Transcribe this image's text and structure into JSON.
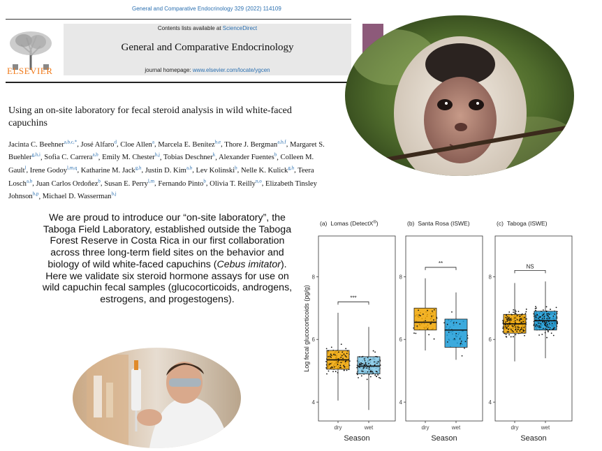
{
  "header": {
    "citation": "General and Comparative Endocrinology 329 (2022) 114109",
    "contents_prefix": "Contents lists available at ",
    "contents_link": "ScienceDirect",
    "journal_name": "General and Comparative Endocrinology",
    "homepage_prefix": "journal homepage: ",
    "homepage_url": "www.elsevier.com/locate/ygcen",
    "publisher": "ELSEVIER"
  },
  "article": {
    "title": "Using an on-site laboratory for fecal steroid analysis in wild white-faced capuchins",
    "authors": [
      {
        "name": "Jacinta C. Beehner",
        "aff": "a,b,c,*"
      },
      {
        "name": "José Alfaro",
        "aff": "d"
      },
      {
        "name": "Cloe Allen",
        "aff": "a"
      },
      {
        "name": "Marcela E. Benítez",
        "aff": "b,e"
      },
      {
        "name": "Thore J. Bergman",
        "aff": "a,b,f"
      },
      {
        "name": "Margaret S. Buehler",
        "aff": "g,h,i"
      },
      {
        "name": "Sofia C. Carrera",
        "aff": "a,b"
      },
      {
        "name": "Emily M. Chester",
        "aff": "h,j"
      },
      {
        "name": "Tobias Deschner",
        "aff": "k"
      },
      {
        "name": "Alexander Fuentes",
        "aff": "b"
      },
      {
        "name": "Colleen M. Gault",
        "aff": "l"
      },
      {
        "name": "Irene Godoy",
        "aff": "l,m,q"
      },
      {
        "name": "Katharine M. Jack",
        "aff": "g,h"
      },
      {
        "name": "Justin D. Kim",
        "aff": "a,b"
      },
      {
        "name": "Lev Kolinski",
        "aff": "b"
      },
      {
        "name": "Nelle K. Kulick",
        "aff": "g,h"
      },
      {
        "name": "Teera Losch",
        "aff": "a,b"
      },
      {
        "name": "Juan Carlos Ordoñez",
        "aff": "b"
      },
      {
        "name": "Susan E. Perry",
        "aff": "l,m"
      },
      {
        "name": "Fernando Pinto",
        "aff": "b"
      },
      {
        "name": "Olivia T. Reilly",
        "aff": "n,o"
      },
      {
        "name": "Elizabeth Tinsley Johnson",
        "aff": "b,p"
      },
      {
        "name": "Michael D. Wasserman",
        "aff": "b,j"
      }
    ]
  },
  "blurb": {
    "part1": "We are proud to introduce our “on-site laboratory”, the Taboga Field Laboratory, established outside the Taboga Forest Reserve in Costa Rica in our first collaboration across three long-term field sites on the behavior and biology of wild white-faced capuchins (",
    "species": "Cebus imitator",
    "part2": "). Here we validate six steroid hormone assays for use on wild capuchin fecal samples (glucocorticoids, androgens, estrogens, and progestogens)."
  },
  "images": {
    "monkey": "white-faced-capuchin-photo",
    "lab": "lab-technician-photo"
  },
  "chart_data": {
    "type": "boxplot",
    "ylabel": "Log fecal glucocorticoids (pg/g)",
    "xlabel": "Season",
    "ylim": [
      3.4,
      9.3
    ],
    "yticks": [
      4,
      6,
      8
    ],
    "categories": [
      "dry",
      "wet"
    ],
    "colors": {
      "dry": "#f0a500",
      "wet": "#7fc7e6",
      "wet_mid": "#1a9bd7"
    },
    "panels": [
      {
        "label": "(a)",
        "site": "Lomas (DetectX",
        "sup": "®",
        "site_end": ")",
        "sig": "***",
        "groups": [
          {
            "cat": "dry",
            "q1": 5.05,
            "median": 5.35,
            "q3": 5.65,
            "lo": 4.05,
            "hi": 6.85,
            "color": "#f0a500",
            "n": 110
          },
          {
            "cat": "wet",
            "q1": 4.9,
            "median": 5.15,
            "q3": 5.45,
            "lo": 3.75,
            "hi": 6.4,
            "color": "#7fc7e6",
            "n": 130
          }
        ]
      },
      {
        "label": "(b)",
        "site": "Santa Rosa (ISWE)",
        "sup": "",
        "site_end": "",
        "sig": "**",
        "groups": [
          {
            "cat": "dry",
            "q1": 6.3,
            "median": 6.55,
            "q3": 7.0,
            "lo": 5.65,
            "hi": 7.95,
            "color": "#f0a500",
            "n": 45
          },
          {
            "cat": "wet",
            "q1": 5.75,
            "median": 6.3,
            "q3": 6.65,
            "lo": 5.35,
            "hi": 7.5,
            "color": "#1a9bd7",
            "n": 40
          }
        ]
      },
      {
        "label": "(c)",
        "site": "Taboga (ISWE)",
        "sup": "",
        "site_end": "",
        "sig": "NS",
        "groups": [
          {
            "cat": "dry",
            "q1": 6.2,
            "median": 6.5,
            "q3": 6.8,
            "lo": 5.3,
            "hi": 7.8,
            "color": "#f0a500",
            "n": 220
          },
          {
            "cat": "wet",
            "q1": 6.3,
            "median": 6.6,
            "q3": 6.9,
            "lo": 5.4,
            "hi": 7.85,
            "color": "#1a9bd7",
            "n": 200
          }
        ]
      }
    ]
  }
}
